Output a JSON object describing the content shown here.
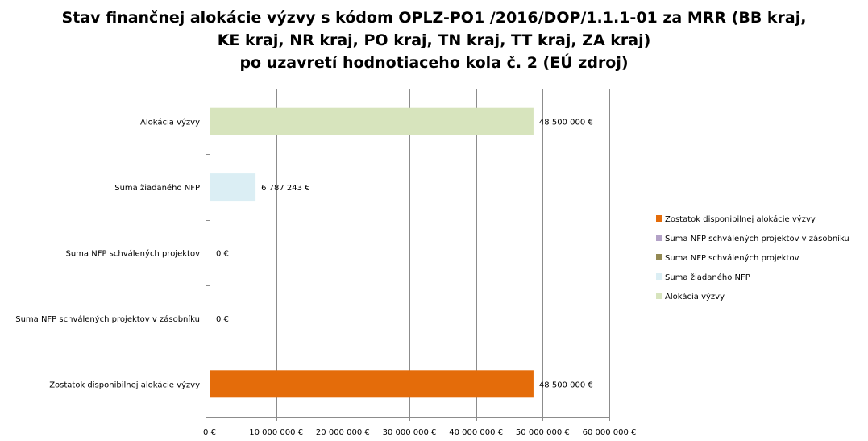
{
  "chart_data": {
    "type": "bar",
    "orientation": "horizontal",
    "title_lines": [
      "Stav finančnej alokácie výzvy s kódom OPLZ-PO1 /2016/DOP/1.1.1-01 za MRR (BB kraj,",
      "KE kraj, NR kraj, PO kraj, TN kraj, TT kraj, ZA kraj)",
      "po uzavretí hodnotiaceho kola č. 2 (EÚ zdroj)"
    ],
    "categories": [
      "Alokácia výzvy",
      "Suma žiadaného NFP",
      "Suma NFP schválených projektov",
      "Suma NFP schválených projektov v zásobníku",
      "Zostatok disponibilnej alokácie výzvy"
    ],
    "values": [
      48500000,
      6787243,
      0,
      0,
      48500000
    ],
    "value_labels": [
      "48 500 000 €",
      "6 787 243 €",
      "0 €",
      "0 €",
      "48 500 000 €"
    ],
    "colors": [
      "#d7e4bd",
      "#dbeef4",
      "#938953",
      "#b3a2c7",
      "#e46c0a"
    ],
    "xlim": [
      0,
      60000000
    ],
    "x_ticks": [
      0,
      10000000,
      20000000,
      30000000,
      40000000,
      50000000,
      60000000
    ],
    "x_tick_labels": [
      "0 €",
      "10 000 000 €",
      "20 000 000 €",
      "30 000 000 €",
      "40 000 000 €",
      "50 000 000 €",
      "60 000 000 €"
    ],
    "grid": "vertical",
    "legend_position": "right",
    "legend": [
      {
        "label": "Zostatok disponibilnej alokácie výzvy",
        "color": "#e46c0a"
      },
      {
        "label": "Suma NFP schválených projektov v zásobníku",
        "color": "#b3a2c7"
      },
      {
        "label": "Suma NFP schválených projektov",
        "color": "#938953"
      },
      {
        "label": "Suma žiadaného NFP",
        "color": "#dbeef4"
      },
      {
        "label": "Alokácia výzvy",
        "color": "#d7e4bd"
      }
    ]
  }
}
